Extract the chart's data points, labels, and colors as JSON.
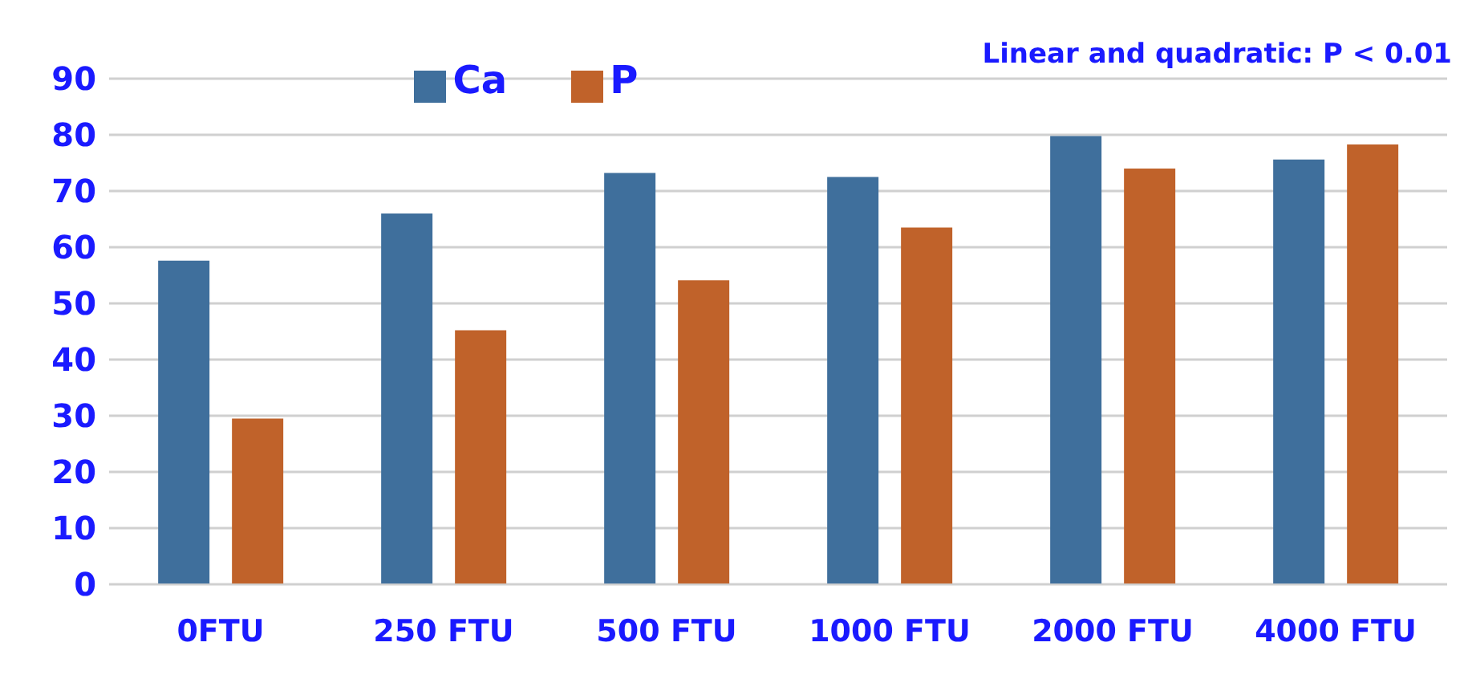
{
  "chart_data": {
    "type": "bar",
    "categories": [
      "0FTU",
      "250 FTU",
      "500 FTU",
      "1000 FTU",
      "2000 FTU",
      "4000 FTU"
    ],
    "series": [
      {
        "name": "Ca",
        "color": "#3f6f9c",
        "values": [
          57.6,
          66.0,
          73.2,
          72.5,
          79.8,
          75.6
        ]
      },
      {
        "name": "P",
        "color": "#c0622a",
        "values": [
          29.5,
          45.2,
          54.1,
          63.5,
          74.0,
          78.3
        ]
      }
    ],
    "ylim": [
      0,
      90
    ],
    "yticks": [
      0,
      10,
      20,
      30,
      40,
      50,
      60,
      70,
      80,
      90
    ],
    "grid": "y",
    "legend": "top",
    "annotations": [
      "Linear and quadratic: P < 0.01"
    ]
  }
}
